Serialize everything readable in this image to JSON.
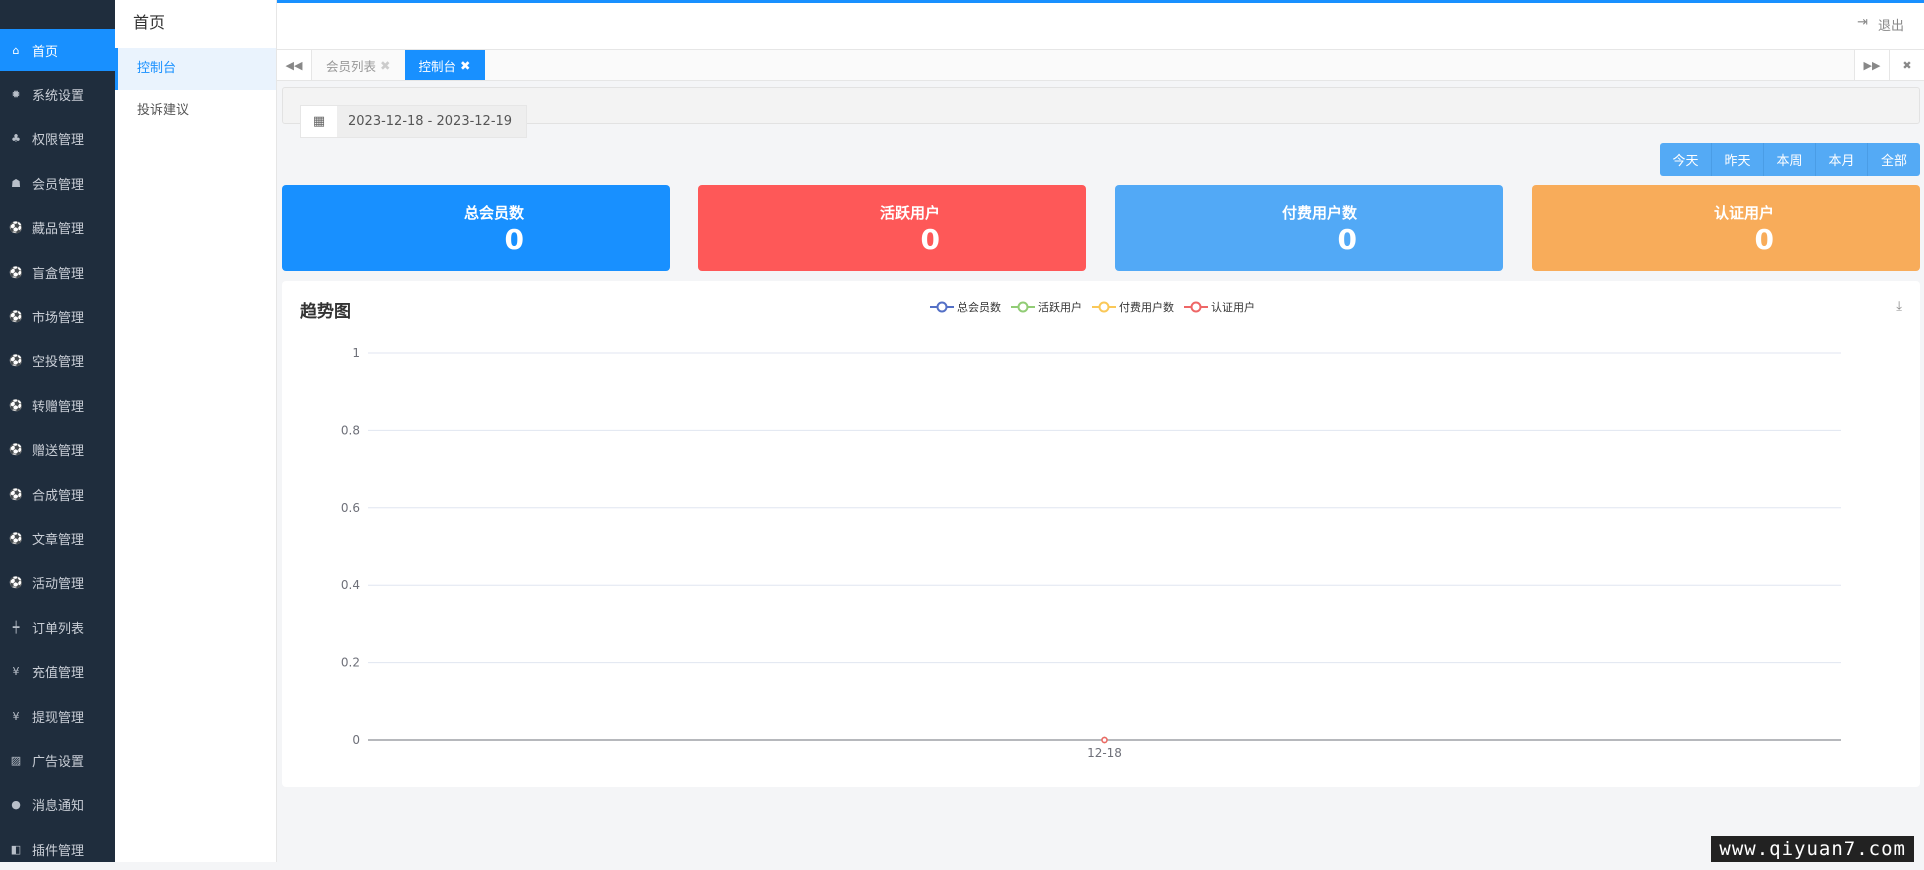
{
  "sidebar": {
    "items": [
      {
        "label": "首页",
        "icon": "home-icon",
        "glyph": "⌂"
      },
      {
        "label": "系统设置",
        "icon": "gear-icon",
        "glyph": "✹"
      },
      {
        "label": "权限管理",
        "icon": "sitemap-icon",
        "glyph": "♣"
      },
      {
        "label": "会员管理",
        "icon": "users-icon",
        "glyph": "☗"
      },
      {
        "label": "藏品管理",
        "icon": "soccer-ball-icon",
        "glyph": "⚽"
      },
      {
        "label": "盲盒管理",
        "icon": "soccer-ball-icon",
        "glyph": "⚽"
      },
      {
        "label": "市场管理",
        "icon": "soccer-ball-icon",
        "glyph": "⚽"
      },
      {
        "label": "空投管理",
        "icon": "soccer-ball-icon",
        "glyph": "⚽"
      },
      {
        "label": "转赠管理",
        "icon": "soccer-ball-icon",
        "glyph": "⚽"
      },
      {
        "label": "赠送管理",
        "icon": "soccer-ball-icon",
        "glyph": "⚽"
      },
      {
        "label": "合成管理",
        "icon": "soccer-ball-icon",
        "glyph": "⚽"
      },
      {
        "label": "文章管理",
        "icon": "soccer-ball-icon",
        "glyph": "⚽"
      },
      {
        "label": "活动管理",
        "icon": "soccer-ball-icon",
        "glyph": "⚽"
      },
      {
        "label": "订单列表",
        "icon": "signpost-icon",
        "glyph": "┿"
      },
      {
        "label": "充值管理",
        "icon": "yen-icon",
        "glyph": "¥"
      },
      {
        "label": "提现管理",
        "icon": "yen-icon",
        "glyph": "¥"
      },
      {
        "label": "广告设置",
        "icon": "image-icon",
        "glyph": "▨"
      },
      {
        "label": "消息通知",
        "icon": "comment-icon",
        "glyph": "●"
      },
      {
        "label": "插件管理",
        "icon": "plugin-icon",
        "glyph": "◧"
      }
    ]
  },
  "subnav": {
    "title": "首页",
    "items": [
      "控制台",
      "投诉建议"
    ]
  },
  "header": {
    "logout": "退出"
  },
  "tabs": [
    {
      "label": "会员列表"
    },
    {
      "label": "控制台"
    }
  ],
  "date_range": "2023-12-18 - 2023-12-19",
  "range_buttons": [
    "今天",
    "昨天",
    "本周",
    "本月",
    "全部"
  ],
  "cards": [
    {
      "label": "总会员数",
      "value": "0",
      "color": "#1890ff"
    },
    {
      "label": "活跃用户",
      "value": "0",
      "color": "#fe5858"
    },
    {
      "label": "付费用户数",
      "value": "0",
      "color": "#52a9f6"
    },
    {
      "label": "认证用户",
      "value": "0",
      "color": "#f8ac5a"
    }
  ],
  "chart_data": {
    "type": "line",
    "title": "趋势图",
    "categories": [
      "12-18"
    ],
    "series": [
      {
        "name": "总会员数",
        "values": [
          0
        ],
        "color": "#5470c6"
      },
      {
        "name": "活跃用户",
        "values": [
          0
        ],
        "color": "#91cc75"
      },
      {
        "name": "付费用户数",
        "values": [
          0
        ],
        "color": "#fac858"
      },
      {
        "name": "认证用户",
        "values": [
          0
        ],
        "color": "#ee6666"
      }
    ],
    "yticks": [
      "0",
      "0.2",
      "0.4",
      "0.6",
      "0.8",
      "1"
    ],
    "ylim": [
      0,
      1
    ],
    "grid": true,
    "legend": "top-center"
  },
  "watermark": "www.qiyuan7.com"
}
